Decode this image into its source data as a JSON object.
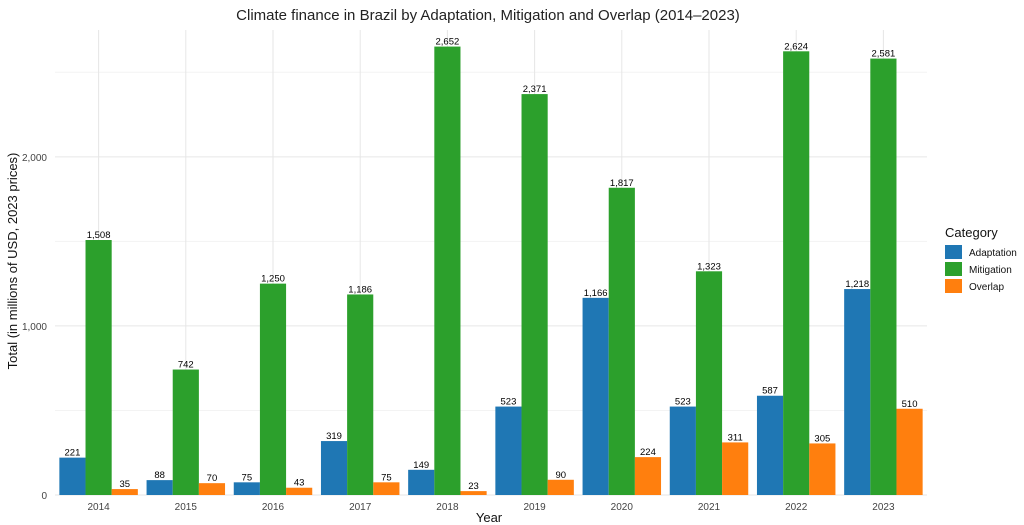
{
  "chart_data": {
    "type": "bar",
    "title": "Climate finance in Brazil by Adaptation, Mitigation and Overlap (2014–2023)",
    "xlabel": "Year",
    "ylabel": "Total (in millions of USD, 2023 prices)",
    "ylim": [
      0,
      2750
    ],
    "yticks": [
      0,
      1000,
      2000
    ],
    "ytick_labels": [
      "0",
      "1,000",
      "2,000"
    ],
    "grid": true,
    "legend": {
      "title": "Category",
      "position": "right"
    },
    "categories": [
      "2014",
      "2015",
      "2016",
      "2017",
      "2018",
      "2019",
      "2020",
      "2021",
      "2022",
      "2023"
    ],
    "series": [
      {
        "name": "Adaptation",
        "color": "#1f77b4",
        "values": [
          221,
          88,
          75,
          319,
          149,
          523,
          1166,
          523,
          587,
          1218
        ]
      },
      {
        "name": "Mitigation",
        "color": "#2ca02c",
        "values": [
          1508,
          742,
          1250,
          1186,
          2652,
          2371,
          1817,
          1323,
          2624,
          2581
        ]
      },
      {
        "name": "Overlap",
        "color": "#ff7f0e",
        "values": [
          35,
          70,
          43,
          75,
          23,
          90,
          224,
          311,
          305,
          510
        ]
      }
    ]
  }
}
